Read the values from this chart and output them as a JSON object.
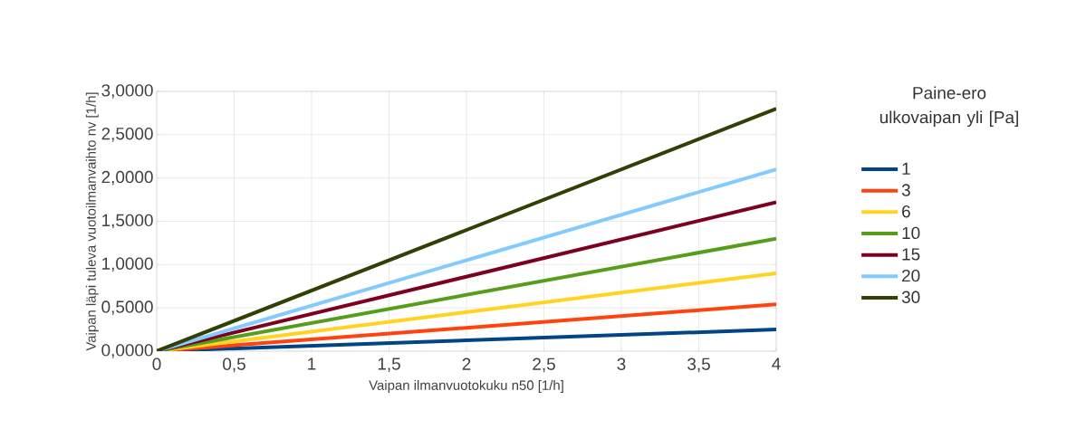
{
  "chart_data": {
    "type": "line",
    "xlabel": "Vaipan ilmanvuotokuku n50 [1/h]",
    "ylabel": "Vaipan läpi tuleva vuotoilmanvaihto nv [1/h]",
    "legend_title": "Paine-ero ulkovaipan yli [Pa]",
    "x": [
      0,
      4
    ],
    "series": [
      {
        "name": "1",
        "color": "#004586",
        "values": [
          0,
          0.25
        ]
      },
      {
        "name": "3",
        "color": "#ff420e",
        "values": [
          0,
          0.54
        ]
      },
      {
        "name": "6",
        "color": "#ffd320",
        "values": [
          0,
          0.9
        ]
      },
      {
        "name": "10",
        "color": "#579d1c",
        "values": [
          0,
          1.3
        ]
      },
      {
        "name": "15",
        "color": "#7e0021",
        "values": [
          0,
          1.72
        ]
      },
      {
        "name": "20",
        "color": "#83caff",
        "values": [
          0,
          2.1
        ]
      },
      {
        "name": "30",
        "color": "#314004",
        "values": [
          0,
          2.8
        ]
      }
    ],
    "xlim": [
      0,
      4
    ],
    "ylim": [
      0,
      3
    ],
    "xticks": [
      0,
      {
        "value": 0.5,
        "label": "0,5"
      },
      1,
      {
        "value": 1.5,
        "label": "1,5"
      },
      2,
      {
        "value": 2.5,
        "label": "2,5"
      },
      3,
      {
        "value": 3.5,
        "label": "3,5"
      },
      4
    ],
    "yticks": [
      {
        "value": 0,
        "label": "0,0000"
      },
      {
        "value": 0.5,
        "label": "0,5000"
      },
      {
        "value": 1,
        "label": "1,0000"
      },
      {
        "value": 1.5,
        "label": "1,5000"
      },
      {
        "value": 2,
        "label": "2,0000"
      },
      {
        "value": 2.5,
        "label": "2,5000"
      },
      {
        "value": 3,
        "label": "3,0000"
      }
    ],
    "grid": true,
    "legend": "right",
    "marker": "none",
    "line_style": "solid"
  }
}
